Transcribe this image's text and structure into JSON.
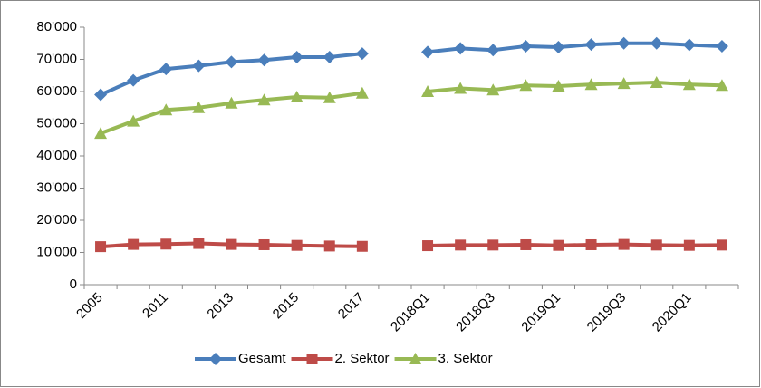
{
  "chart_data": {
    "type": "line",
    "categories": [
      "2005",
      null,
      "2011",
      null,
      "2013",
      null,
      "2015",
      null,
      "2017",
      null,
      "2018Q1",
      null,
      "2018Q3",
      null,
      "2019Q1",
      null,
      "2019Q3",
      null,
      "2020Q1",
      null
    ],
    "series": [
      {
        "name": "Gesamt",
        "color": "#4a7ebb",
        "marker": "diamond",
        "values": [
          59000,
          63500,
          67000,
          68000,
          69200,
          69800,
          70700,
          70700,
          71800,
          null,
          72300,
          73400,
          72900,
          74100,
          73800,
          74600,
          75000,
          75000,
          74500,
          74100
        ]
      },
      {
        "name": "2. Sektor",
        "color": "#be4b48",
        "marker": "square",
        "values": [
          11800,
          12500,
          12600,
          12800,
          12500,
          12400,
          12200,
          12000,
          11900,
          null,
          12100,
          12300,
          12300,
          12400,
          12200,
          12400,
          12500,
          12300,
          12200,
          12300
        ]
      },
      {
        "name": "3. Sektor",
        "color": "#98b954",
        "marker": "triangle",
        "values": [
          47000,
          50800,
          54300,
          55000,
          56400,
          57400,
          58300,
          58100,
          59500,
          null,
          60000,
          61000,
          60500,
          61900,
          61700,
          62200,
          62500,
          62800,
          62200,
          61900
        ]
      }
    ],
    "ylim": [
      0,
      80000
    ],
    "yticks": [
      0,
      {
        "value": 10000,
        "label": "10'000"
      },
      {
        "value": 20000,
        "label": "20'000"
      },
      {
        "value": 30000,
        "label": "30'000"
      },
      {
        "value": 40000,
        "label": "40'000"
      },
      {
        "value": 50000,
        "label": "50'000"
      },
      {
        "value": 60000,
        "label": "60'000"
      },
      {
        "value": 70000,
        "label": "70'000"
      },
      {
        "value": 80000,
        "label": "80'000"
      }
    ],
    "grid": false,
    "legend": "bottom"
  }
}
